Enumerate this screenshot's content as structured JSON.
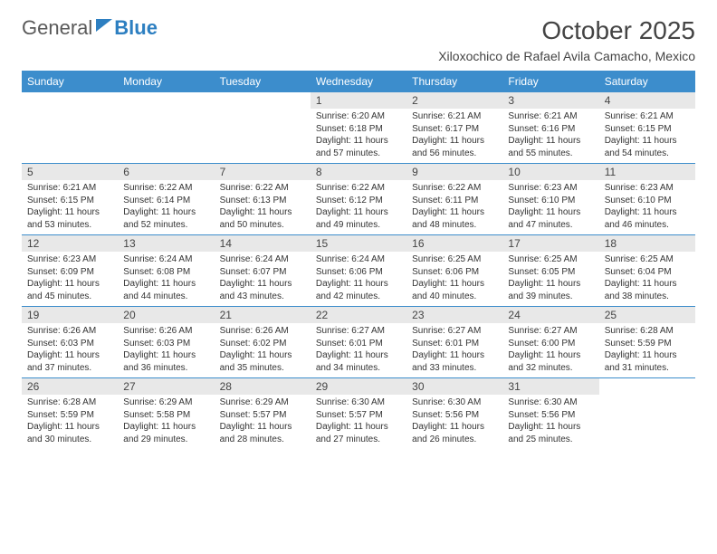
{
  "logo": {
    "text1": "General",
    "text2": "Blue"
  },
  "title": "October 2025",
  "location": "Xiloxochico de Rafael Avila Camacho, Mexico",
  "colors": {
    "header_bg": "#3c8dcc",
    "header_fg": "#ffffff",
    "daynum_bg": "#e8e8e8",
    "rule": "#3c8dcc",
    "logo_gray": "#5a5a5a",
    "logo_blue": "#2d7fc1"
  },
  "day_names": [
    "Sunday",
    "Monday",
    "Tuesday",
    "Wednesday",
    "Thursday",
    "Friday",
    "Saturday"
  ],
  "weeks": [
    [
      null,
      null,
      null,
      {
        "n": "1",
        "sr": "6:20 AM",
        "ss": "6:18 PM",
        "dl": "11 hours and 57 minutes."
      },
      {
        "n": "2",
        "sr": "6:21 AM",
        "ss": "6:17 PM",
        "dl": "11 hours and 56 minutes."
      },
      {
        "n": "3",
        "sr": "6:21 AM",
        "ss": "6:16 PM",
        "dl": "11 hours and 55 minutes."
      },
      {
        "n": "4",
        "sr": "6:21 AM",
        "ss": "6:15 PM",
        "dl": "11 hours and 54 minutes."
      }
    ],
    [
      {
        "n": "5",
        "sr": "6:21 AM",
        "ss": "6:15 PM",
        "dl": "11 hours and 53 minutes."
      },
      {
        "n": "6",
        "sr": "6:22 AM",
        "ss": "6:14 PM",
        "dl": "11 hours and 52 minutes."
      },
      {
        "n": "7",
        "sr": "6:22 AM",
        "ss": "6:13 PM",
        "dl": "11 hours and 50 minutes."
      },
      {
        "n": "8",
        "sr": "6:22 AM",
        "ss": "6:12 PM",
        "dl": "11 hours and 49 minutes."
      },
      {
        "n": "9",
        "sr": "6:22 AM",
        "ss": "6:11 PM",
        "dl": "11 hours and 48 minutes."
      },
      {
        "n": "10",
        "sr": "6:23 AM",
        "ss": "6:10 PM",
        "dl": "11 hours and 47 minutes."
      },
      {
        "n": "11",
        "sr": "6:23 AM",
        "ss": "6:10 PM",
        "dl": "11 hours and 46 minutes."
      }
    ],
    [
      {
        "n": "12",
        "sr": "6:23 AM",
        "ss": "6:09 PM",
        "dl": "11 hours and 45 minutes."
      },
      {
        "n": "13",
        "sr": "6:24 AM",
        "ss": "6:08 PM",
        "dl": "11 hours and 44 minutes."
      },
      {
        "n": "14",
        "sr": "6:24 AM",
        "ss": "6:07 PM",
        "dl": "11 hours and 43 minutes."
      },
      {
        "n": "15",
        "sr": "6:24 AM",
        "ss": "6:06 PM",
        "dl": "11 hours and 42 minutes."
      },
      {
        "n": "16",
        "sr": "6:25 AM",
        "ss": "6:06 PM",
        "dl": "11 hours and 40 minutes."
      },
      {
        "n": "17",
        "sr": "6:25 AM",
        "ss": "6:05 PM",
        "dl": "11 hours and 39 minutes."
      },
      {
        "n": "18",
        "sr": "6:25 AM",
        "ss": "6:04 PM",
        "dl": "11 hours and 38 minutes."
      }
    ],
    [
      {
        "n": "19",
        "sr": "6:26 AM",
        "ss": "6:03 PM",
        "dl": "11 hours and 37 minutes."
      },
      {
        "n": "20",
        "sr": "6:26 AM",
        "ss": "6:03 PM",
        "dl": "11 hours and 36 minutes."
      },
      {
        "n": "21",
        "sr": "6:26 AM",
        "ss": "6:02 PM",
        "dl": "11 hours and 35 minutes."
      },
      {
        "n": "22",
        "sr": "6:27 AM",
        "ss": "6:01 PM",
        "dl": "11 hours and 34 minutes."
      },
      {
        "n": "23",
        "sr": "6:27 AM",
        "ss": "6:01 PM",
        "dl": "11 hours and 33 minutes."
      },
      {
        "n": "24",
        "sr": "6:27 AM",
        "ss": "6:00 PM",
        "dl": "11 hours and 32 minutes."
      },
      {
        "n": "25",
        "sr": "6:28 AM",
        "ss": "5:59 PM",
        "dl": "11 hours and 31 minutes."
      }
    ],
    [
      {
        "n": "26",
        "sr": "6:28 AM",
        "ss": "5:59 PM",
        "dl": "11 hours and 30 minutes."
      },
      {
        "n": "27",
        "sr": "6:29 AM",
        "ss": "5:58 PM",
        "dl": "11 hours and 29 minutes."
      },
      {
        "n": "28",
        "sr": "6:29 AM",
        "ss": "5:57 PM",
        "dl": "11 hours and 28 minutes."
      },
      {
        "n": "29",
        "sr": "6:30 AM",
        "ss": "5:57 PM",
        "dl": "11 hours and 27 minutes."
      },
      {
        "n": "30",
        "sr": "6:30 AM",
        "ss": "5:56 PM",
        "dl": "11 hours and 26 minutes."
      },
      {
        "n": "31",
        "sr": "6:30 AM",
        "ss": "5:56 PM",
        "dl": "11 hours and 25 minutes."
      },
      null
    ]
  ],
  "labels": {
    "sunrise": "Sunrise:",
    "sunset": "Sunset:",
    "daylight": "Daylight:"
  }
}
